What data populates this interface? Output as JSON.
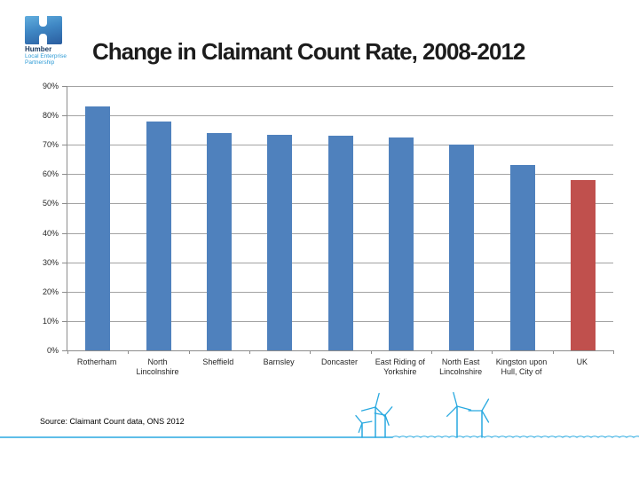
{
  "page": {
    "title": "Change in Claimant Count Rate, 2008-2012"
  },
  "logo": {
    "name": "Humber",
    "subtitle_line1": "Local Enterprise",
    "subtitle_line2": "Partnership"
  },
  "footer": {
    "source_note": "Source: Claimant Count data, ONS 2012"
  },
  "icons": {
    "logo": "humber-lep-h-logo",
    "decoration": "wind-turbines-coastline-graphic"
  },
  "colors": {
    "bar_blue": "#4f81bd",
    "bar_highlight_red": "#c0504d",
    "gridline_gray": "#a3a3a3",
    "axis_gray": "#8c8c8c",
    "title_text": "#1c1c1c",
    "logo_navy": "#17375e",
    "logo_blue": "#2e9bd6",
    "decoration_blue": "#29a9e0"
  },
  "chart_data": {
    "type": "bar",
    "title": "Change in Claimant Count Rate, 2008-2012",
    "categories": [
      "Rotherham",
      "North Lincolnshire",
      "Sheffield",
      "Barnsley",
      "Doncaster",
      "East Riding of Yorkshire",
      "North East Lincolnshire",
      "Kingston upon Hull, City of",
      "UK"
    ],
    "values": [
      83,
      78,
      74,
      73.5,
      73,
      72.5,
      70,
      63,
      58
    ],
    "bar_colors": [
      "#4f81bd",
      "#4f81bd",
      "#4f81bd",
      "#4f81bd",
      "#4f81bd",
      "#4f81bd",
      "#4f81bd",
      "#4f81bd",
      "#c0504d"
    ],
    "ylim": [
      0,
      90
    ],
    "yticks": [
      "90%",
      "80%",
      "70%",
      "60%",
      "50%",
      "40%",
      "30%",
      "20%",
      "10%",
      "0%"
    ],
    "ytick_unit": "%",
    "grid": true,
    "legend": false,
    "xlabel": "",
    "ylabel": ""
  }
}
